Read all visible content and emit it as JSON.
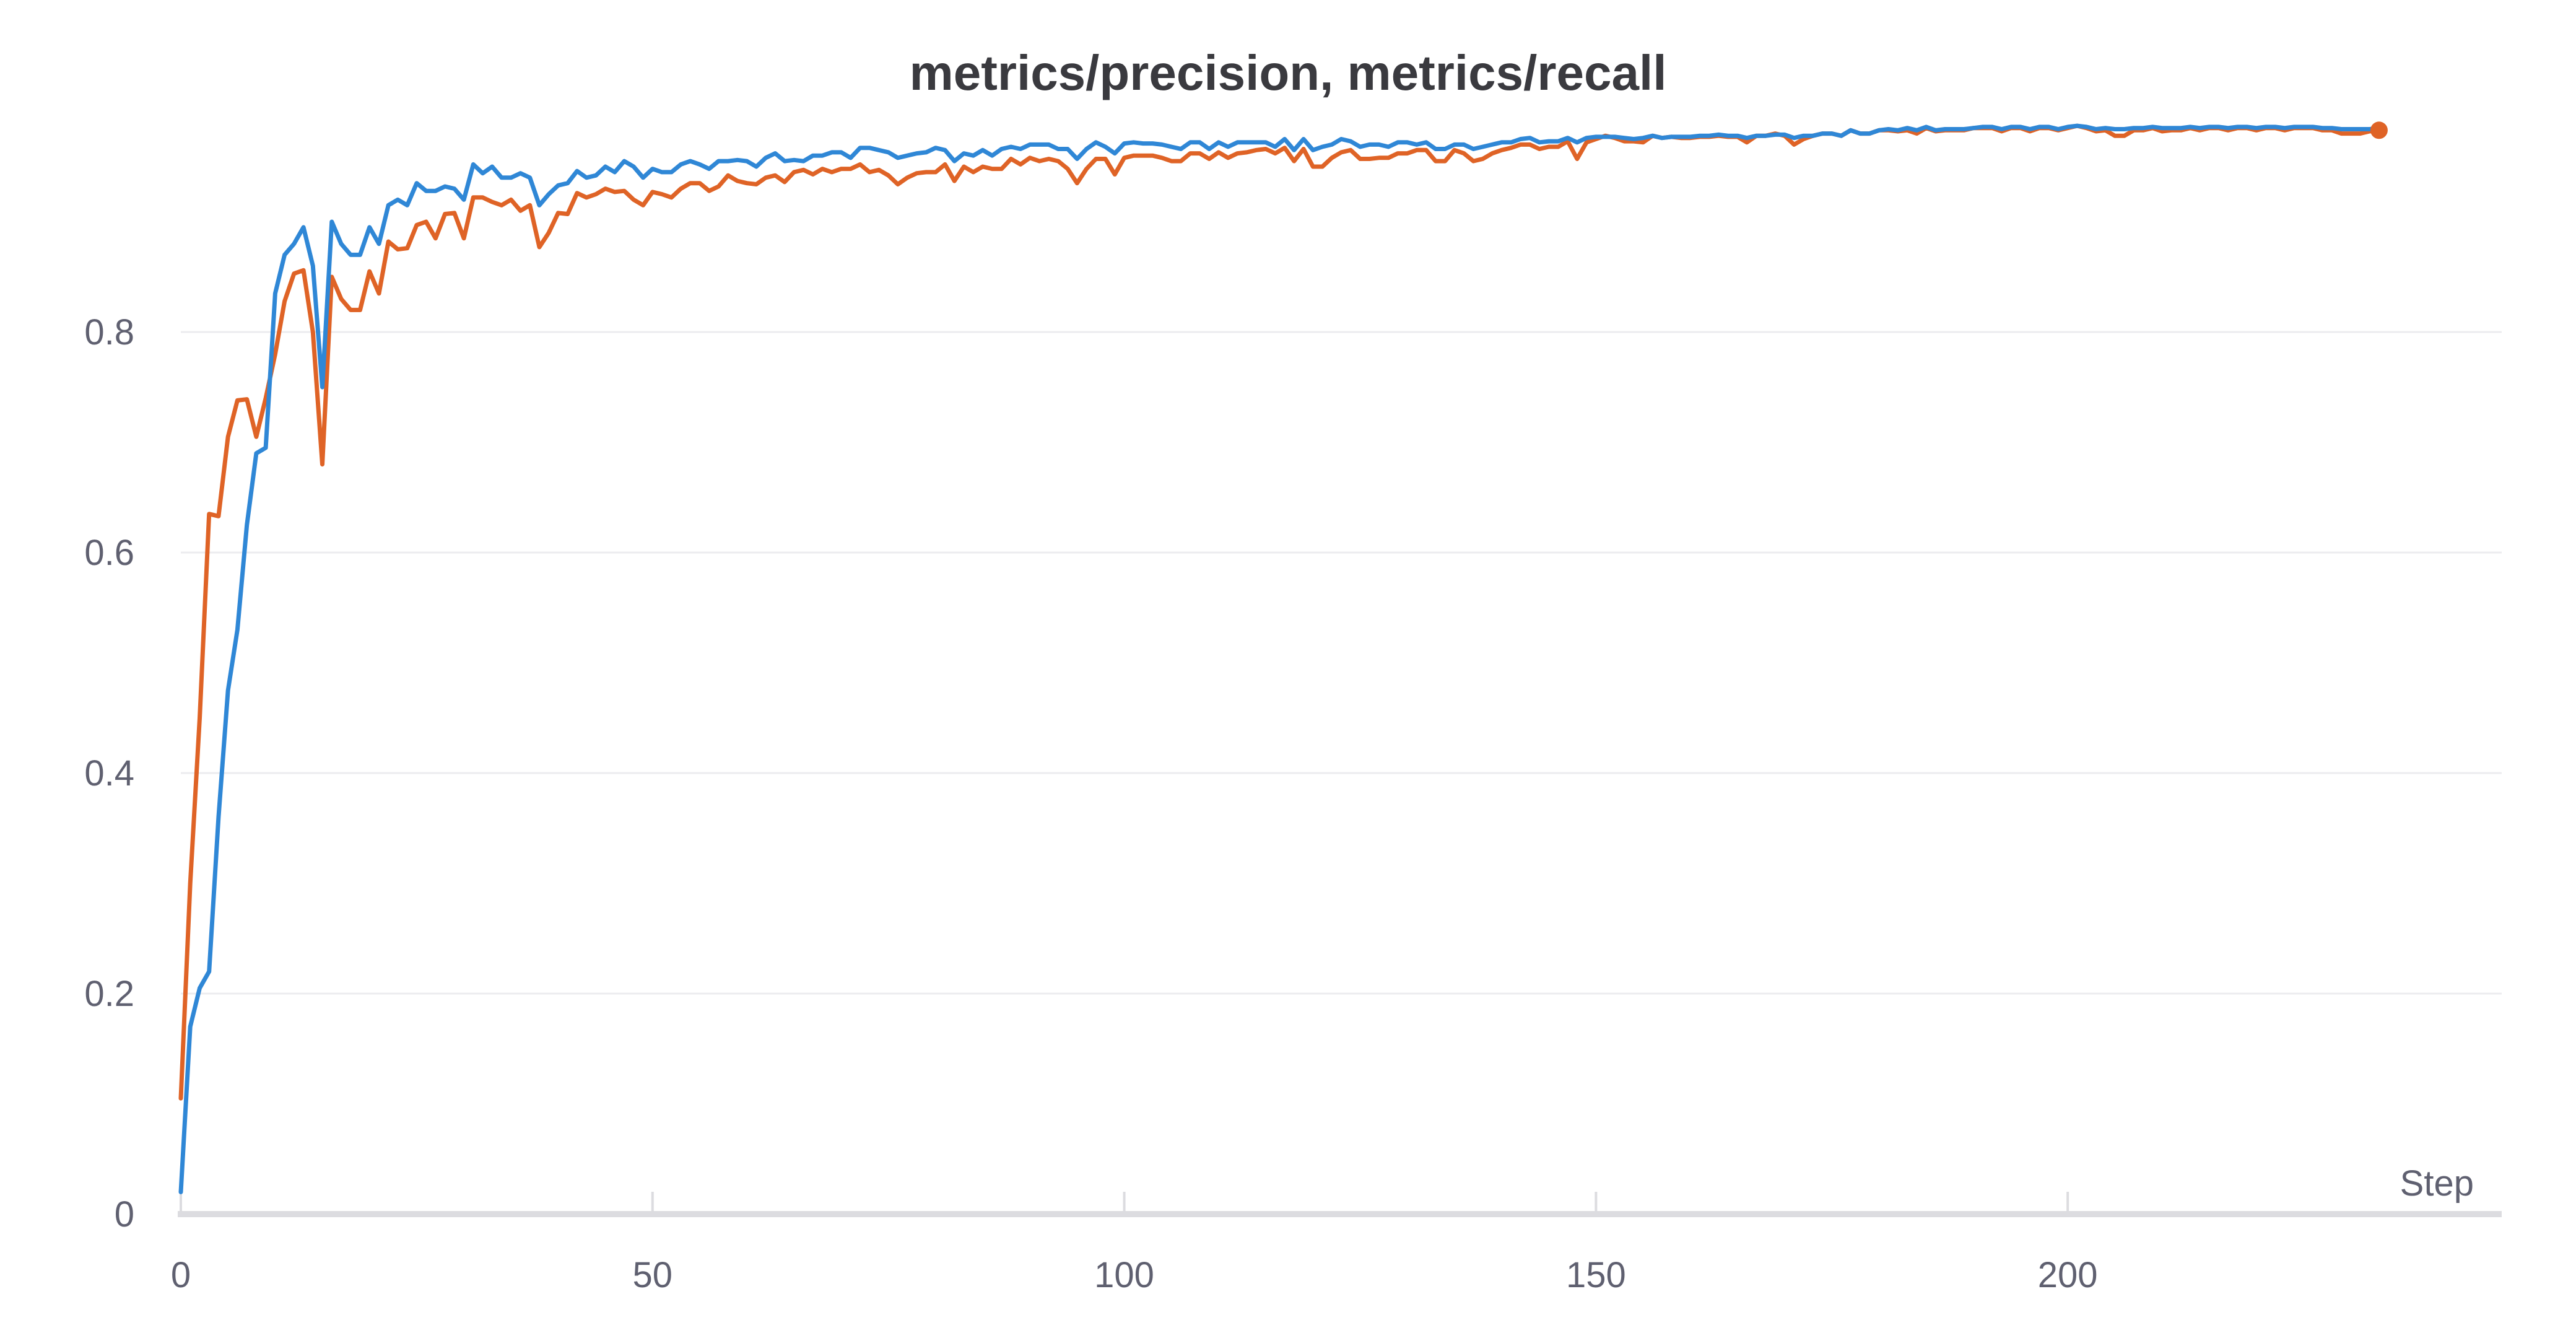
{
  "chart_data": {
    "type": "line",
    "title": "metrics/precision, metrics/recall",
    "xlabel": "Step",
    "ylabel": "",
    "xlim": [
      0,
      246
    ],
    "ylim": [
      0,
      1.0
    ],
    "x_ticks": [
      0,
      50,
      100,
      150,
      200
    ],
    "y_ticks": [
      0,
      0.2,
      0.4,
      0.6,
      0.8
    ],
    "x_tick_labels": [
      "0",
      "50",
      "100",
      "150",
      "200"
    ],
    "y_tick_labels": [
      "0",
      "0.2",
      "0.4",
      "0.6",
      "0.8"
    ],
    "grid": true,
    "series": [
      {
        "name": "metrics/precision",
        "color": "#df6326",
        "x_start": 0,
        "values": [
          0.105,
          0.3,
          0.45,
          0.635,
          0.633,
          0.705,
          0.738,
          0.739,
          0.705,
          0.74,
          0.78,
          0.828,
          0.853,
          0.856,
          0.8,
          0.68,
          0.85,
          0.83,
          0.82,
          0.82,
          0.855,
          0.835,
          0.882,
          0.875,
          0.876,
          0.897,
          0.9,
          0.885,
          0.907,
          0.908,
          0.885,
          0.922,
          0.922,
          0.918,
          0.915,
          0.92,
          0.91,
          0.915,
          0.877,
          0.89,
          0.908,
          0.907,
          0.926,
          0.922,
          0.925,
          0.93,
          0.927,
          0.928,
          0.92,
          0.915,
          0.927,
          0.925,
          0.922,
          0.93,
          0.935,
          0.935,
          0.928,
          0.932,
          0.942,
          0.937,
          0.935,
          0.934,
          0.94,
          0.942,
          0.936,
          0.945,
          0.947,
          0.943,
          0.948,
          0.945,
          0.948,
          0.948,
          0.952,
          0.945,
          0.947,
          0.942,
          0.934,
          0.94,
          0.944,
          0.945,
          0.945,
          0.952,
          0.937,
          0.95,
          0.945,
          0.95,
          0.948,
          0.948,
          0.957,
          0.952,
          0.958,
          0.955,
          0.957,
          0.955,
          0.948,
          0.935,
          0.948,
          0.957,
          0.957,
          0.943,
          0.958,
          0.96,
          0.96,
          0.96,
          0.958,
          0.955,
          0.955,
          0.962,
          0.962,
          0.957,
          0.963,
          0.958,
          0.962,
          0.963,
          0.965,
          0.966,
          0.962,
          0.967,
          0.955,
          0.966,
          0.95,
          0.95,
          0.958,
          0.963,
          0.965,
          0.957,
          0.957,
          0.958,
          0.958,
          0.962,
          0.962,
          0.965,
          0.965,
          0.955,
          0.955,
          0.965,
          0.962,
          0.955,
          0.957,
          0.962,
          0.965,
          0.967,
          0.97,
          0.97,
          0.966,
          0.968,
          0.968,
          0.973,
          0.957,
          0.972,
          0.975,
          0.978,
          0.976,
          0.973,
          0.973,
          0.972,
          0.978,
          0.976,
          0.977,
          0.976,
          0.976,
          0.977,
          0.977,
          0.978,
          0.977,
          0.977,
          0.972,
          0.978,
          0.978,
          0.98,
          0.978,
          0.97,
          0.975,
          0.978,
          0.98,
          0.98,
          0.978,
          0.983,
          0.98,
          0.98,
          0.983,
          0.983,
          0.982,
          0.983,
          0.98,
          0.985,
          0.982,
          0.983,
          0.983,
          0.983,
          0.985,
          0.985,
          0.985,
          0.982,
          0.985,
          0.985,
          0.982,
          0.985,
          0.985,
          0.983,
          0.985,
          0.987,
          0.985,
          0.982,
          0.983,
          0.978,
          0.978,
          0.983,
          0.983,
          0.985,
          0.982,
          0.983,
          0.983,
          0.985,
          0.983,
          0.985,
          0.985,
          0.983,
          0.985,
          0.985,
          0.983,
          0.985,
          0.985,
          0.983,
          0.985,
          0.985,
          0.985,
          0.983,
          0.983,
          0.98,
          0.98,
          0.98,
          0.982,
          0.983
        ]
      },
      {
        "name": "metrics/recall",
        "color": "#2f87d6",
        "x_start": 0,
        "values": [
          0.02,
          0.17,
          0.205,
          0.22,
          0.36,
          0.475,
          0.53,
          0.625,
          0.69,
          0.695,
          0.835,
          0.87,
          0.88,
          0.895,
          0.86,
          0.75,
          0.9,
          0.88,
          0.87,
          0.87,
          0.895,
          0.88,
          0.915,
          0.92,
          0.915,
          0.935,
          0.928,
          0.928,
          0.932,
          0.93,
          0.92,
          0.952,
          0.944,
          0.95,
          0.94,
          0.94,
          0.944,
          0.94,
          0.915,
          0.925,
          0.933,
          0.935,
          0.946,
          0.94,
          0.942,
          0.95,
          0.945,
          0.955,
          0.95,
          0.94,
          0.948,
          0.945,
          0.945,
          0.952,
          0.955,
          0.952,
          0.948,
          0.955,
          0.955,
          0.956,
          0.955,
          0.95,
          0.958,
          0.962,
          0.955,
          0.956,
          0.955,
          0.96,
          0.96,
          0.963,
          0.963,
          0.958,
          0.967,
          0.967,
          0.965,
          0.963,
          0.958,
          0.96,
          0.962,
          0.963,
          0.967,
          0.965,
          0.955,
          0.962,
          0.96,
          0.965,
          0.96,
          0.966,
          0.968,
          0.966,
          0.97,
          0.97,
          0.97,
          0.966,
          0.966,
          0.957,
          0.966,
          0.972,
          0.968,
          0.962,
          0.971,
          0.972,
          0.971,
          0.971,
          0.97,
          0.968,
          0.966,
          0.972,
          0.972,
          0.966,
          0.972,
          0.968,
          0.972,
          0.972,
          0.972,
          0.972,
          0.968,
          0.975,
          0.965,
          0.975,
          0.965,
          0.968,
          0.97,
          0.975,
          0.973,
          0.968,
          0.97,
          0.97,
          0.968,
          0.972,
          0.972,
          0.97,
          0.972,
          0.966,
          0.966,
          0.97,
          0.97,
          0.966,
          0.968,
          0.97,
          0.972,
          0.972,
          0.975,
          0.976,
          0.972,
          0.973,
          0.973,
          0.976,
          0.972,
          0.976,
          0.977,
          0.977,
          0.977,
          0.976,
          0.975,
          0.976,
          0.978,
          0.976,
          0.977,
          0.977,
          0.977,
          0.978,
          0.978,
          0.979,
          0.978,
          0.978,
          0.976,
          0.978,
          0.978,
          0.979,
          0.979,
          0.976,
          0.978,
          0.978,
          0.98,
          0.98,
          0.978,
          0.983,
          0.98,
          0.98,
          0.983,
          0.984,
          0.983,
          0.985,
          0.983,
          0.986,
          0.983,
          0.984,
          0.984,
          0.984,
          0.985,
          0.986,
          0.986,
          0.984,
          0.986,
          0.986,
          0.984,
          0.986,
          0.986,
          0.984,
          0.986,
          0.987,
          0.986,
          0.984,
          0.985,
          0.984,
          0.984,
          0.985,
          0.985,
          0.986,
          0.985,
          0.985,
          0.985,
          0.986,
          0.985,
          0.986,
          0.986,
          0.985,
          0.986,
          0.986,
          0.985,
          0.986,
          0.986,
          0.985,
          0.986,
          0.986,
          0.986,
          0.985,
          0.985,
          0.984,
          0.984,
          0.984,
          0.984,
          0.985
        ]
      }
    ]
  }
}
